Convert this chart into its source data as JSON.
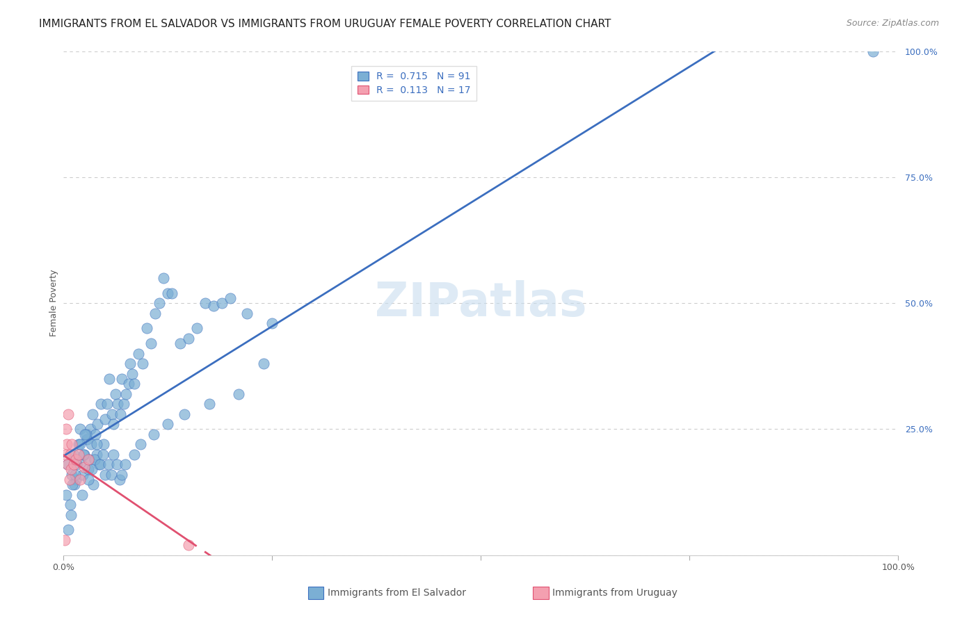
{
  "title": "IMMIGRANTS FROM EL SALVADOR VS IMMIGRANTS FROM URUGUAY FEMALE POVERTY CORRELATION CHART",
  "source": "Source: ZipAtlas.com",
  "ylabel": "Female Poverty",
  "legend_label1": "Immigrants from El Salvador",
  "legend_label2": "Immigrants from Uruguay",
  "R1": "0.715",
  "N1": "91",
  "R2": "0.113",
  "N2": "17",
  "color_blue": "#7BAFD4",
  "color_pink": "#F4A0B0",
  "line_blue": "#3B6EBF",
  "line_pink": "#E05070",
  "watermark": "ZIPatlas",
  "blue_scatter_x": [
    0.5,
    1.2,
    1.5,
    1.8,
    2.0,
    2.1,
    2.2,
    2.3,
    2.5,
    2.8,
    3.0,
    3.1,
    3.2,
    3.3,
    3.5,
    3.6,
    3.8,
    4.0,
    4.1,
    4.2,
    4.5,
    4.8,
    5.0,
    5.2,
    5.5,
    5.8,
    6.0,
    6.2,
    6.5,
    6.8,
    7.0,
    7.2,
    7.5,
    7.8,
    8.0,
    8.2,
    8.5,
    9.0,
    9.5,
    10.0,
    10.5,
    11.0,
    11.5,
    12.0,
    12.5,
    13.0,
    14.0,
    15.0,
    16.0,
    17.0,
    18.0,
    19.0,
    20.0,
    22.0,
    25.0,
    1.0,
    1.3,
    1.6,
    2.0,
    2.4,
    2.7,
    3.0,
    3.4,
    3.7,
    4.0,
    4.4,
    4.7,
    5.0,
    5.4,
    5.7,
    6.0,
    6.4,
    6.7,
    7.0,
    7.4,
    8.5,
    9.2,
    10.8,
    12.5,
    14.5,
    17.5,
    21.0,
    24.0,
    0.3,
    0.8,
    1.1,
    1.4,
    0.6,
    0.9,
    2.6,
    97.0
  ],
  "blue_scatter_y": [
    18.0,
    20.0,
    15.0,
    22.0,
    25.0,
    18.5,
    12.0,
    16.0,
    20.0,
    23.0,
    17.0,
    19.0,
    25.0,
    22.0,
    28.0,
    14.0,
    24.0,
    20.0,
    26.0,
    18.0,
    30.0,
    22.0,
    27.0,
    30.0,
    35.0,
    28.0,
    26.0,
    32.0,
    30.0,
    28.0,
    35.0,
    30.0,
    32.0,
    34.0,
    38.0,
    36.0,
    34.0,
    40.0,
    38.0,
    45.0,
    42.0,
    48.0,
    50.0,
    55.0,
    52.0,
    52.0,
    42.0,
    43.0,
    45.0,
    50.0,
    49.5,
    50.0,
    51.0,
    48.0,
    46.0,
    16.0,
    14.0,
    18.0,
    22.0,
    20.0,
    24.0,
    15.0,
    17.0,
    19.0,
    22.0,
    18.0,
    20.0,
    16.0,
    18.0,
    16.0,
    20.0,
    18.0,
    15.0,
    16.0,
    18.0,
    20.0,
    22.0,
    24.0,
    26.0,
    28.0,
    30.0,
    32.0,
    38.0,
    12.0,
    10.0,
    14.0,
    16.0,
    5.0,
    8.0,
    24.0,
    100.0
  ],
  "pink_scatter_x": [
    0.2,
    0.3,
    0.4,
    0.5,
    0.6,
    0.7,
    0.8,
    0.9,
    1.0,
    1.2,
    1.5,
    1.8,
    2.0,
    2.5,
    3.0,
    15.0,
    0.15
  ],
  "pink_scatter_y": [
    20.0,
    25.0,
    22.0,
    18.0,
    28.0,
    15.0,
    20.0,
    17.0,
    22.0,
    18.0,
    19.0,
    20.0,
    15.0,
    17.5,
    19.0,
    2.0,
    3.0
  ],
  "xmin": 0.0,
  "xmax": 100.0,
  "ymin": 0.0,
  "ymax": 100.0,
  "grid_color": "#CCCCCC",
  "background_color": "#FFFFFF",
  "title_fontsize": 11,
  "axis_label_fontsize": 9,
  "tick_fontsize": 9,
  "legend_fontsize": 10,
  "source_fontsize": 9
}
